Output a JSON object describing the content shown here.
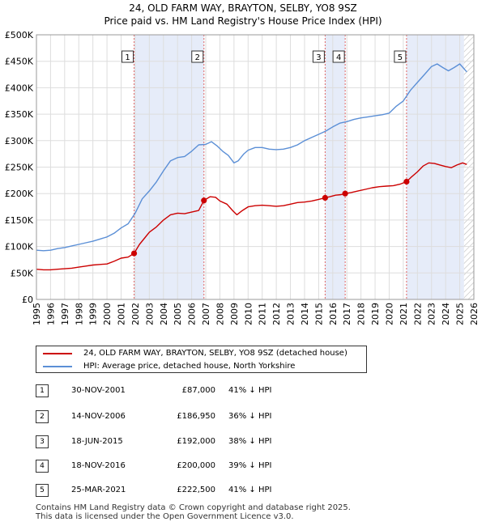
{
  "chart_data": {
    "type": "line",
    "title": "24, OLD FARM WAY, BRAYTON, SELBY, YO8 9SZ",
    "subtitle": "Price paid vs. HM Land Registry's House Price Index (HPI)",
    "xlabel": "",
    "ylabel": "",
    "xlim": [
      1995,
      2026
    ],
    "ylim": [
      0,
      500000
    ],
    "x_ticks": [
      "1995",
      "1996",
      "1997",
      "1998",
      "1999",
      "2000",
      "2001",
      "2002",
      "2003",
      "2004",
      "2005",
      "2006",
      "2007",
      "2008",
      "2009",
      "2010",
      "2011",
      "2012",
      "2013",
      "2014",
      "2015",
      "2016",
      "2017",
      "2018",
      "2019",
      "2020",
      "2021",
      "2022",
      "2023",
      "2024",
      "2025",
      "2026"
    ],
    "y_ticks": [
      {
        "value": 0,
        "label": "£0"
      },
      {
        "value": 50000,
        "label": "£50K"
      },
      {
        "value": 100000,
        "label": "£100K"
      },
      {
        "value": 150000,
        "label": "£150K"
      },
      {
        "value": 200000,
        "label": "£200K"
      },
      {
        "value": 250000,
        "label": "£250K"
      },
      {
        "value": 300000,
        "label": "£300K"
      },
      {
        "value": 350000,
        "label": "£350K"
      },
      {
        "value": 400000,
        "label": "£400K"
      },
      {
        "value": 450000,
        "label": "£450K"
      },
      {
        "value": 500000,
        "label": "£500K"
      }
    ],
    "grid": true,
    "shaded_periods": [
      [
        2001.92,
        2006.87
      ],
      [
        2015.46,
        2016.88
      ],
      [
        2021.23,
        2025.3
      ]
    ],
    "hatched_from": 2025.3,
    "series": [
      {
        "name": "24, OLD FARM WAY, BRAYTON, SELBY, YO8 9SZ (detached house)",
        "color": "#cc0000",
        "x": [
          1995.0,
          1995.5,
          1996.0,
          1996.5,
          1997.0,
          1997.5,
          1998.0,
          1998.5,
          1999.0,
          1999.5,
          2000.0,
          2000.5,
          2001.0,
          2001.5,
          2001.92,
          2002.3,
          2002.7,
          2003.0,
          2003.5,
          2004.0,
          2004.5,
          2005.0,
          2005.5,
          2006.0,
          2006.5,
          2006.87,
          2007.3,
          2007.7,
          2008.0,
          2008.5,
          2008.9,
          2009.2,
          2009.6,
          2010.0,
          2010.5,
          2011.0,
          2011.5,
          2012.0,
          2012.5,
          2013.0,
          2013.5,
          2014.0,
          2014.5,
          2015.0,
          2015.46,
          2015.8,
          2016.2,
          2016.6,
          2016.88,
          2017.3,
          2017.8,
          2018.3,
          2018.8,
          2019.3,
          2019.8,
          2020.3,
          2020.8,
          2021.23,
          2021.6,
          2022.0,
          2022.4,
          2022.8,
          2023.2,
          2023.6,
          2024.0,
          2024.4,
          2024.8,
          2025.2,
          2025.5
        ],
        "values": [
          57000,
          56000,
          56000,
          57000,
          58000,
          59000,
          61000,
          63000,
          65000,
          66000,
          67000,
          72000,
          78000,
          80000,
          87000,
          104000,
          117000,
          127000,
          137000,
          150000,
          160000,
          163000,
          162000,
          165000,
          168000,
          186950,
          194000,
          193000,
          186000,
          180000,
          168000,
          160000,
          168000,
          175000,
          177000,
          178000,
          177000,
          176000,
          177000,
          180000,
          183000,
          184000,
          186000,
          189000,
          192000,
          194000,
          197000,
          198000,
          200000,
          202000,
          205000,
          208000,
          211000,
          213000,
          214000,
          215000,
          218000,
          222500,
          232000,
          241000,
          252000,
          258000,
          257000,
          254000,
          251000,
          249000,
          254000,
          258000,
          255000
        ]
      },
      {
        "name": "HPI: Average price, detached house, North Yorkshire",
        "color": "#5b8fd6",
        "x": [
          1995.0,
          1995.5,
          1996.0,
          1996.5,
          1997.0,
          1997.5,
          1998.0,
          1998.5,
          1999.0,
          1999.5,
          2000.0,
          2000.5,
          2001.0,
          2001.5,
          2002.0,
          2002.5,
          2003.0,
          2003.5,
          2004.0,
          2004.5,
          2005.0,
          2005.5,
          2006.0,
          2006.5,
          2007.0,
          2007.4,
          2007.8,
          2008.2,
          2008.6,
          2009.0,
          2009.3,
          2009.7,
          2010.0,
          2010.5,
          2011.0,
          2011.5,
          2012.0,
          2012.5,
          2013.0,
          2013.5,
          2014.0,
          2014.5,
          2015.0,
          2015.5,
          2016.0,
          2016.5,
          2017.0,
          2017.5,
          2018.0,
          2018.5,
          2019.0,
          2019.5,
          2020.0,
          2020.5,
          2021.0,
          2021.5,
          2022.0,
          2022.5,
          2023.0,
          2023.4,
          2023.8,
          2024.2,
          2024.6,
          2025.0,
          2025.5
        ],
        "values": [
          93000,
          92000,
          93000,
          96000,
          98000,
          101000,
          104000,
          107000,
          110000,
          114000,
          118000,
          125000,
          135000,
          143000,
          163000,
          190000,
          205000,
          222000,
          243000,
          262000,
          268000,
          270000,
          280000,
          292000,
          293000,
          298000,
          290000,
          280000,
          272000,
          258000,
          262000,
          275000,
          282000,
          287000,
          287000,
          284000,
          283000,
          284000,
          287000,
          292000,
          300000,
          306000,
          312000,
          318000,
          326000,
          333000,
          336000,
          340000,
          343000,
          345000,
          347000,
          349000,
          352000,
          365000,
          375000,
          395000,
          410000,
          425000,
          440000,
          445000,
          438000,
          432000,
          438000,
          445000,
          430000
        ]
      }
    ],
    "transactions": [
      {
        "num": "1",
        "date": "30-NOV-2001",
        "x": 2001.92,
        "price_value": 87000,
        "price": "£87,000",
        "hpi": "41% ↓ HPI"
      },
      {
        "num": "2",
        "date": "14-NOV-2006",
        "x": 2006.87,
        "price_value": 186950,
        "price": "£186,950",
        "hpi": "36% ↓ HPI"
      },
      {
        "num": "3",
        "date": "18-JUN-2015",
        "x": 2015.46,
        "price_value": 192000,
        "price": "£192,000",
        "hpi": "38% ↓ HPI"
      },
      {
        "num": "4",
        "date": "18-NOV-2016",
        "x": 2016.88,
        "price_value": 200000,
        "price": "£200,000",
        "hpi": "39% ↓ HPI"
      },
      {
        "num": "5",
        "date": "25-MAR-2021",
        "x": 2021.23,
        "price_value": 222500,
        "price": "£222,500",
        "hpi": "41% ↓ HPI"
      }
    ]
  },
  "legend": {
    "property_label": "24, OLD FARM WAY, BRAYTON, SELBY, YO8 9SZ (detached house)",
    "hpi_label": "HPI: Average price, detached house, North Yorkshire",
    "property_color": "#cc0000",
    "hpi_color": "#5b8fd6"
  },
  "footer": {
    "line1": "Contains HM Land Registry data © Crown copyright and database right 2025.",
    "line2": "This data is licensed under the Open Government Licence v3.0."
  }
}
